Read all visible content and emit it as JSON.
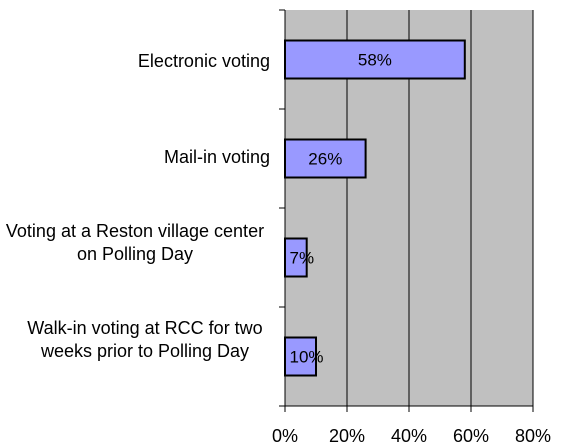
{
  "chart_data": {
    "type": "bar",
    "orientation": "horizontal",
    "categories": [
      "Electronic voting",
      "Mail-in voting",
      "Voting at a Reston village center on Polling Day",
      "Walk-in voting at RCC for two weeks prior to Polling Day"
    ],
    "values": [
      58,
      26,
      7,
      10
    ],
    "data_labels": [
      "58%",
      "26%",
      "7%",
      "10%"
    ],
    "xlim": [
      0,
      80
    ],
    "x_ticks": [
      0,
      20,
      40,
      60,
      80
    ],
    "x_tick_labels": [
      "0%",
      "20%",
      "40%",
      "60%",
      "80%"
    ],
    "grid": true,
    "plot_background": "#c0c0c0",
    "bar_color": "#9999ff",
    "bar_edge_color": "#000000",
    "gridline_color": "#000000"
  }
}
